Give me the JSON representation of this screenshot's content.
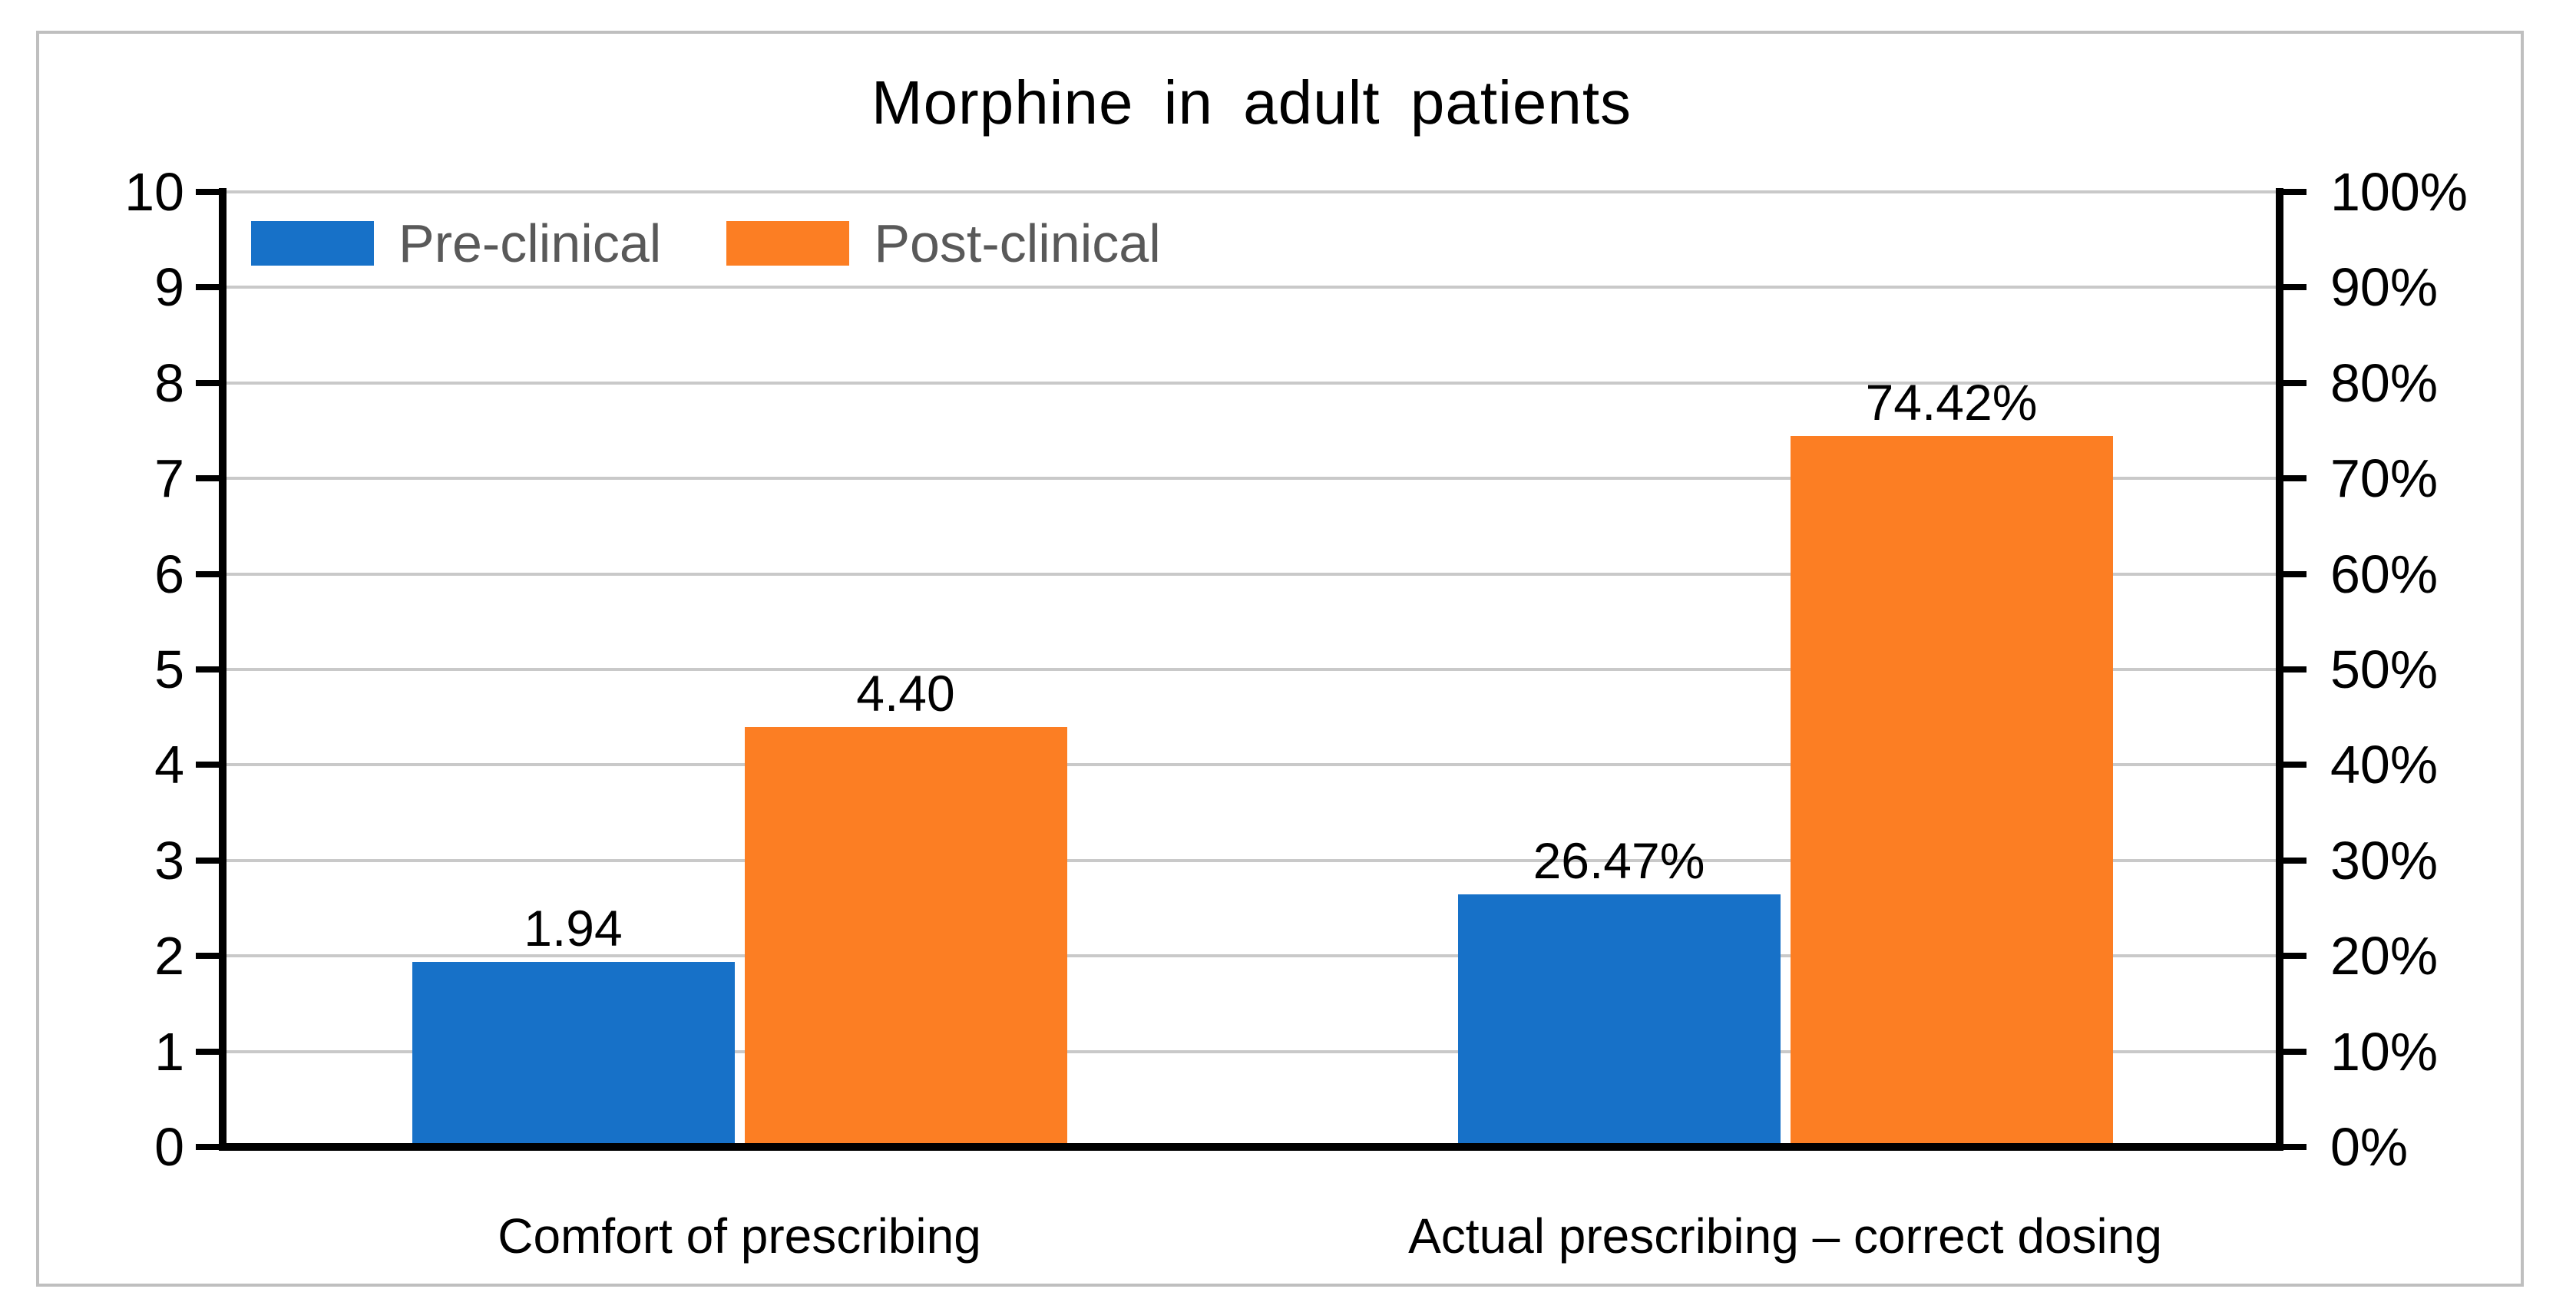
{
  "chart_data": {
    "type": "bar",
    "title": "Morphine in adult patients",
    "categories": [
      "Comfort of prescribing",
      "Actual prescribing – correct dosing"
    ],
    "series": [
      {
        "name": "Pre-clinical",
        "color": "#1771C8",
        "axis_values": [
          1.94,
          2.647
        ],
        "data_labels": [
          "1.94",
          "26.47%"
        ]
      },
      {
        "name": "Post-clinical",
        "color": "#FC7E23",
        "axis_values": [
          4.4,
          7.442
        ],
        "data_labels": [
          "4.40",
          "74.42%"
        ]
      }
    ],
    "left_axis": {
      "ylim": [
        0,
        10
      ],
      "ticks": [
        "0",
        "1",
        "2",
        "3",
        "4",
        "5",
        "6",
        "7",
        "8",
        "9",
        "10"
      ]
    },
    "right_axis": {
      "range": [
        "0%",
        "100%"
      ],
      "ticks": [
        "0%",
        "10%",
        "20%",
        "30%",
        "40%",
        "50%",
        "60%",
        "70%",
        "80%",
        "90%",
        "100%"
      ]
    },
    "grid": true,
    "legend_position": "top-left"
  },
  "colors": {
    "pre_clinical": "#1771C8",
    "post_clinical": "#FC7E23",
    "legend_text": "#595959",
    "gridline": "#C9C9C9",
    "axis": "#000000",
    "frame_border": "#BFBFBF",
    "background": "#FFFFFF"
  }
}
